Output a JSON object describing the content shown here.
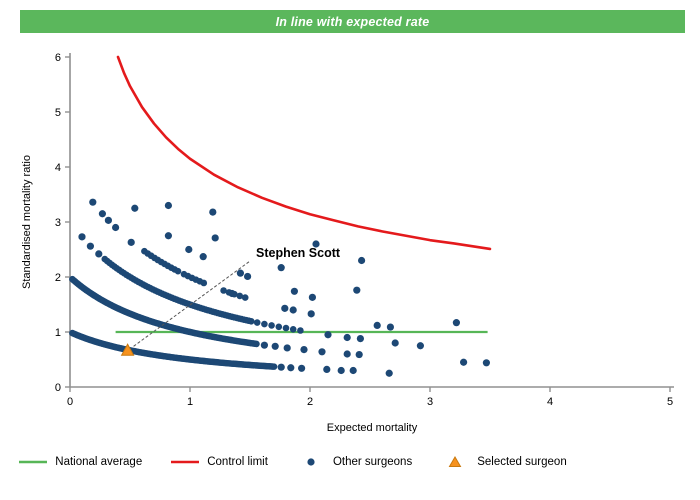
{
  "banner": {
    "text": "In line with expected rate"
  },
  "colors": {
    "banner": "#5bb75c",
    "national_average": "#57b657",
    "control_limit": "#e41a1c",
    "other_surgeons": "#1d4875",
    "selected_surgeon": "#f6921e",
    "selected_surgeon_edge": "#c97a10",
    "axis": "#909090",
    "annotation_line": "#555555"
  },
  "chart_data": {
    "type": "scatter",
    "xlabel": "Expected mortality",
    "ylabel": "Standardised mortality ratio",
    "xlim": [
      0,
      5
    ],
    "ylim": [
      0,
      6
    ],
    "xticks": [
      0,
      1,
      2,
      3,
      4,
      5
    ],
    "yticks": [
      0,
      1,
      2,
      3,
      4,
      5,
      6
    ],
    "grid": false,
    "legend_position": "bottom",
    "national_average": {
      "label": "National average",
      "y": 1.0,
      "x_start": 0.38,
      "x_end": 3.48
    },
    "control_limit": {
      "label": "Control limit",
      "points": [
        [
          0.4,
          6.0
        ],
        [
          0.45,
          5.71
        ],
        [
          0.5,
          5.47
        ],
        [
          0.6,
          5.09
        ],
        [
          0.7,
          4.79
        ],
        [
          0.8,
          4.54
        ],
        [
          0.9,
          4.33
        ],
        [
          1.0,
          4.15
        ],
        [
          1.2,
          3.86
        ],
        [
          1.4,
          3.63
        ],
        [
          1.6,
          3.44
        ],
        [
          1.8,
          3.28
        ],
        [
          2.0,
          3.14
        ],
        [
          2.2,
          3.03
        ],
        [
          2.4,
          2.92
        ],
        [
          2.6,
          2.83
        ],
        [
          2.8,
          2.75
        ],
        [
          3.0,
          2.67
        ],
        [
          3.2,
          2.61
        ],
        [
          3.5,
          2.51
        ]
      ]
    },
    "other_surgeons": {
      "label": "Other surgeons",
      "note": "Points lie on SMR = k/(1+E) bands; dense ranges sampled [x_start, x_end, step], dots are explicit [x, y]",
      "bands": [
        {
          "k": 1,
          "dense": [
            [
              0.02,
              1.71,
              0.012
            ]
          ],
          "dots": [
            [
              1.76,
              0.36
            ],
            [
              1.84,
              0.35
            ],
            [
              1.93,
              0.34
            ],
            [
              2.14,
              0.32
            ],
            [
              2.26,
              0.3
            ],
            [
              2.36,
              0.3
            ],
            [
              2.66,
              0.25
            ]
          ]
        },
        {
          "k": 2,
          "dense": [
            [
              0.02,
              1.56,
              0.013
            ]
          ],
          "dots": [
            [
              1.62,
              0.76
            ],
            [
              1.71,
              0.74
            ],
            [
              1.81,
              0.71
            ],
            [
              1.95,
              0.68
            ],
            [
              2.1,
              0.64
            ],
            [
              2.31,
              0.6
            ],
            [
              2.41,
              0.59
            ],
            [
              3.28,
              0.45
            ],
            [
              3.47,
              0.44
            ]
          ]
        },
        {
          "k": 3,
          "dense": [
            [
              0.29,
              1.52,
              0.02
            ],
            [
              1.56,
              1.95,
              0.06
            ]
          ],
          "dots": [
            [
              0.1,
              2.73
            ],
            [
              0.17,
              2.56
            ],
            [
              0.24,
              2.42
            ],
            [
              2.15,
              0.95
            ],
            [
              2.31,
              0.9
            ],
            [
              2.42,
              0.88
            ],
            [
              2.71,
              0.8
            ],
            [
              2.92,
              0.75
            ]
          ]
        },
        {
          "k": 4,
          "dense": [
            [
              0.62,
              0.9,
              0.028
            ],
            [
              0.95,
              1.12,
              0.033
            ],
            [
              1.28,
              1.46,
              0.045
            ]
          ],
          "dots": [
            [
              0.19,
              3.36
            ],
            [
              0.27,
              3.15
            ],
            [
              0.32,
              3.03
            ],
            [
              0.38,
              2.9
            ],
            [
              0.51,
              2.63
            ],
            [
              1.35,
              1.7
            ],
            [
              1.79,
              1.43
            ],
            [
              1.86,
              1.4
            ],
            [
              2.01,
              1.33
            ],
            [
              2.56,
              1.12
            ],
            [
              2.67,
              1.09
            ]
          ]
        },
        {
          "k": 5,
          "dense": [],
          "dots": [
            [
              0.54,
              3.25
            ],
            [
              0.82,
              2.75
            ],
            [
              0.99,
              2.5
            ],
            [
              1.11,
              2.37
            ],
            [
              1.42,
              2.07
            ],
            [
              1.48,
              2.01
            ],
            [
              1.87,
              1.74
            ],
            [
              2.02,
              1.63
            ],
            [
              3.22,
              1.17
            ]
          ]
        },
        {
          "k": 6,
          "dense": [],
          "dots": [
            [
              0.82,
              3.3
            ],
            [
              1.21,
              2.71
            ],
            [
              1.76,
              2.17
            ],
            [
              2.39,
              1.76
            ]
          ]
        },
        {
          "k": 7,
          "dense": [],
          "dots": [
            [
              1.19,
              3.18
            ]
          ]
        },
        {
          "k": 8,
          "dense": [],
          "dots": [
            [
              2.05,
              2.6
            ],
            [
              2.43,
              2.3
            ]
          ]
        }
      ]
    },
    "selected_surgeon": {
      "label": "Selected surgeon",
      "name": "Stephen Scott",
      "x": 0.48,
      "y": 0.66,
      "callout": {
        "text_x": 1.55,
        "text_y": 2.36,
        "leader_start": [
          0.53,
          0.74
        ],
        "leader_end": [
          1.5,
          2.29
        ]
      }
    }
  },
  "legend": {
    "items": [
      {
        "label": "National average",
        "marker": "line",
        "color_key": "national_average"
      },
      {
        "label": "Control limit",
        "marker": "line",
        "color_key": "control_limit"
      },
      {
        "label": "Other surgeons",
        "marker": "dot",
        "color_key": "other_surgeons"
      },
      {
        "label": "Selected surgeon",
        "marker": "triangle",
        "color_key": "selected_surgeon"
      }
    ]
  }
}
